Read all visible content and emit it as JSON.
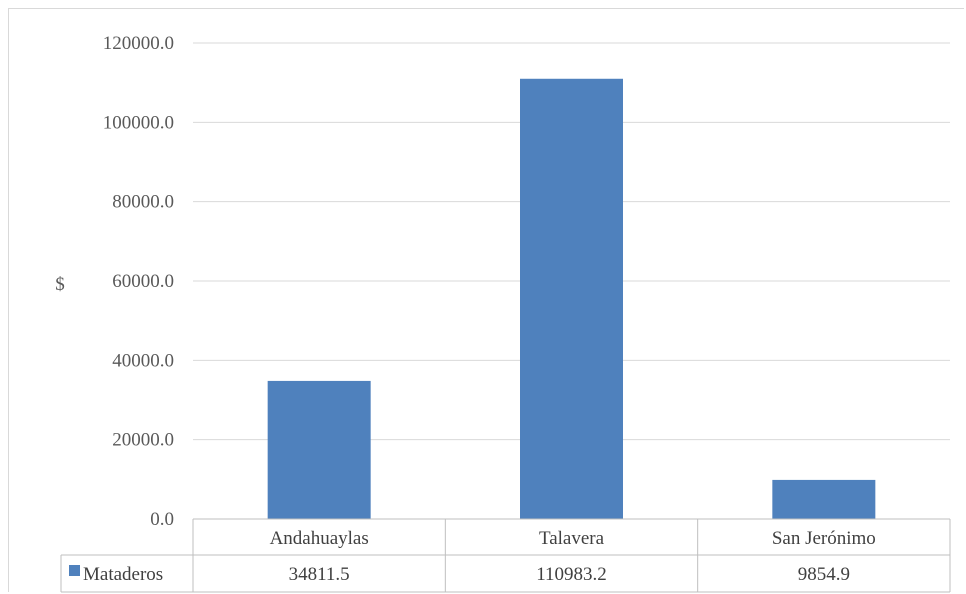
{
  "chart_data": {
    "type": "bar",
    "categories": [
      "Andahuaylas",
      "Talavera",
      "San Jerónimo"
    ],
    "series": [
      {
        "name": "Mataderos",
        "values": [
          34811.5,
          110983.2,
          9854.9
        ],
        "value_labels": [
          "34811.5",
          "110983.2",
          "9854.9"
        ],
        "color": "#4f81bd"
      }
    ],
    "ylabel": "$",
    "ylim": [
      0,
      120000
    ],
    "yticks": [
      0,
      20000,
      40000,
      60000,
      80000,
      100000,
      120000
    ],
    "ytick_labels": [
      "0.0",
      "20000.0",
      "40000.0",
      "60000.0",
      "80000.0",
      "100000.0",
      "120000.0"
    ],
    "grid": true,
    "legend": "data-table",
    "data_table": true
  }
}
